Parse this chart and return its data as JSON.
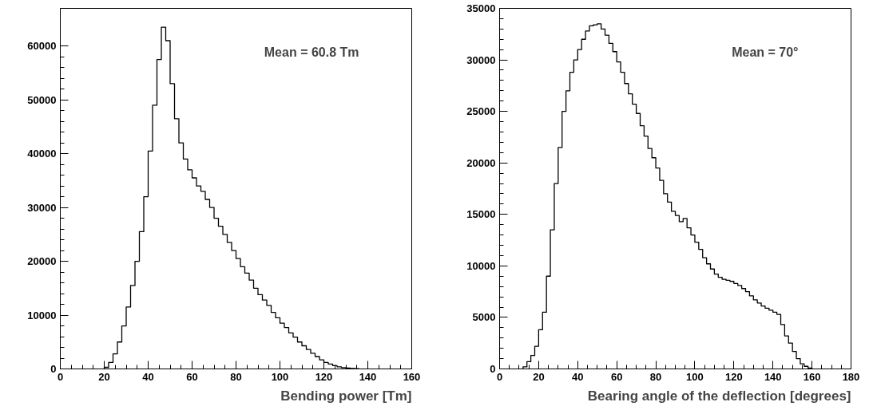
{
  "chart_data": [
    {
      "type": "histogram",
      "xlabel": "Bending power [Tm]",
      "annotations": [
        "Mean = 60.8 Tm"
      ],
      "color": "#000000",
      "grid": false,
      "bins": [
        20,
        22,
        24,
        26,
        28,
        30,
        32,
        34,
        36,
        38,
        40,
        42,
        44,
        46,
        48,
        50,
        52,
        54,
        56,
        58,
        60,
        62,
        64,
        66,
        68,
        70,
        72,
        74,
        76,
        78,
        80,
        82,
        84,
        86,
        88,
        90,
        92,
        94,
        96,
        98,
        100,
        102,
        104,
        106,
        108,
        110,
        112,
        114,
        116,
        118,
        120,
        122,
        124,
        126,
        128,
        130,
        132,
        134,
        136
      ],
      "values": [
        300,
        1200,
        2800,
        5000,
        8000,
        11500,
        15500,
        20000,
        25500,
        32000,
        40500,
        49000,
        57500,
        63500,
        61000,
        53000,
        46500,
        42000,
        39000,
        37000,
        35500,
        34000,
        33000,
        31500,
        30000,
        28000,
        26500,
        25000,
        23500,
        22000,
        20500,
        19000,
        17800,
        16500,
        15000,
        13800,
        12800,
        11800,
        10500,
        9500,
        8500,
        7700,
        6700,
        5900,
        5000,
        4300,
        3600,
        2900,
        2300,
        1700,
        1200,
        900,
        600,
        400,
        250,
        150,
        80,
        40
      ],
      "xlim": [
        0,
        160
      ],
      "xticks": [
        0,
        20,
        40,
        60,
        80,
        100,
        120,
        140,
        160
      ],
      "ylim": [
        0,
        67000
      ],
      "yticks": [
        0,
        10000,
        20000,
        30000,
        40000,
        50000,
        60000
      ]
    },
    {
      "type": "histogram",
      "xlabel": "Bearing angle of the deflection [degrees]",
      "annotations": [
        "Mean = 70°"
      ],
      "color": "#000000",
      "grid": false,
      "bins": [
        12,
        14,
        16,
        18,
        20,
        22,
        24,
        26,
        28,
        30,
        32,
        34,
        36,
        38,
        40,
        42,
        44,
        46,
        48,
        50,
        52,
        54,
        56,
        58,
        60,
        62,
        64,
        66,
        68,
        70,
        72,
        74,
        76,
        78,
        80,
        82,
        84,
        86,
        88,
        90,
        92,
        94,
        96,
        98,
        100,
        102,
        104,
        106,
        108,
        110,
        112,
        114,
        116,
        118,
        120,
        122,
        124,
        126,
        128,
        130,
        132,
        134,
        136,
        138,
        140,
        142,
        144,
        146,
        148,
        150,
        152,
        154,
        156,
        158,
        160
      ],
      "values": [
        200,
        700,
        1300,
        2200,
        3800,
        5500,
        9000,
        13500,
        18000,
        21500,
        25000,
        27000,
        28800,
        30000,
        31000,
        32000,
        32800,
        33300,
        33400,
        33500,
        33000,
        32400,
        31600,
        30800,
        29800,
        28800,
        27700,
        26700,
        25700,
        24800,
        23600,
        22600,
        21400,
        20500,
        19500,
        18300,
        17000,
        16200,
        15300,
        14900,
        14300,
        14600,
        13700,
        13000,
        12300,
        11600,
        10800,
        10200,
        9700,
        9200,
        8900,
        8700,
        8600,
        8500,
        8300,
        8100,
        7800,
        7500,
        7100,
        6700,
        6400,
        6100,
        5900,
        5700,
        5500,
        5300,
        4300,
        3200,
        2500,
        1700,
        1000,
        500,
        250,
        80
      ],
      "xlim": [
        0,
        180
      ],
      "xticks": [
        0,
        20,
        40,
        60,
        80,
        100,
        120,
        140,
        160,
        180
      ],
      "ylim": [
        0,
        35000
      ],
      "yticks": [
        0,
        5000,
        10000,
        15000,
        20000,
        25000,
        30000,
        35000
      ]
    }
  ]
}
